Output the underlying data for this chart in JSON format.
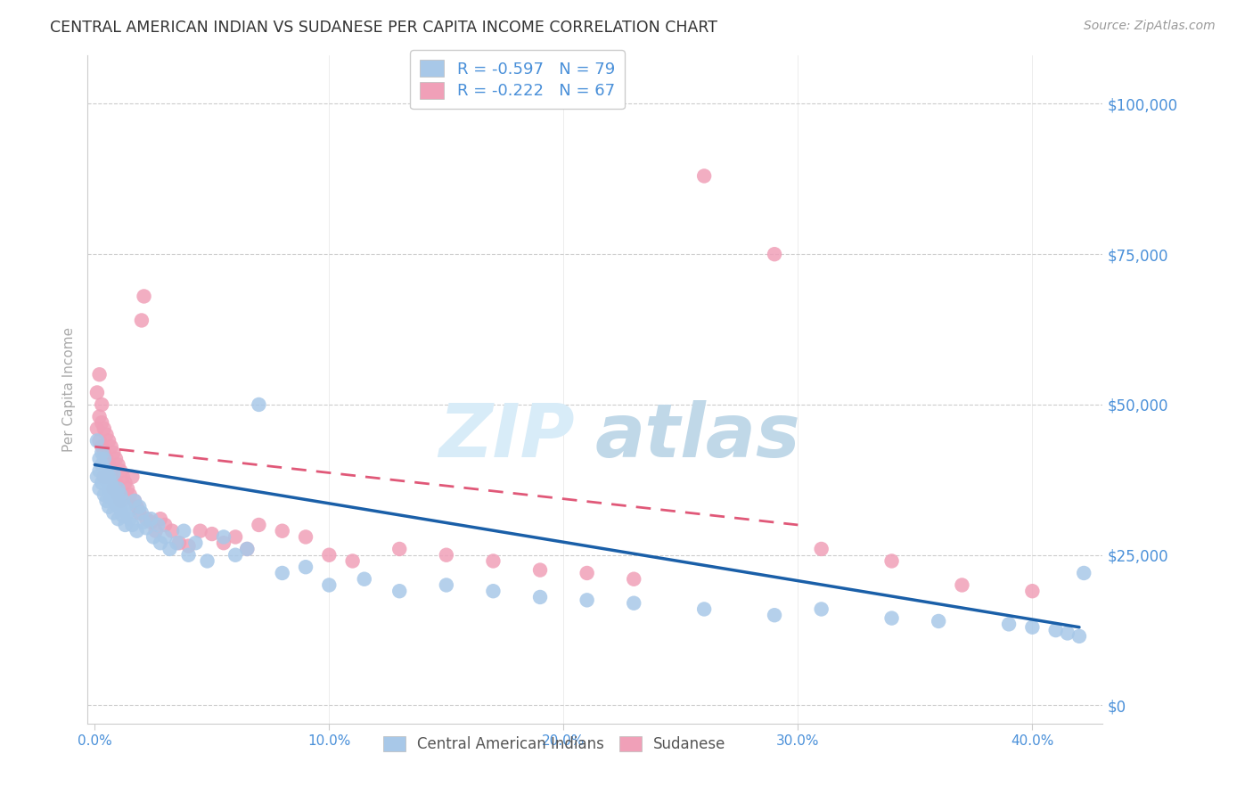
{
  "title": "CENTRAL AMERICAN INDIAN VS SUDANESE PER CAPITA INCOME CORRELATION CHART",
  "source": "Source: ZipAtlas.com",
  "ylabel": "Per Capita Income",
  "xlim": [
    -0.003,
    0.43
  ],
  "ylim": [
    -3000,
    108000
  ],
  "xticks": [
    0.0,
    0.1,
    0.2,
    0.3,
    0.4
  ],
  "xtick_labels": [
    "0.0%",
    "10.0%",
    "20.0%",
    "30.0%",
    "40.0%"
  ],
  "yticks": [
    0,
    25000,
    50000,
    75000,
    100000
  ],
  "ytick_labels": [
    "$0",
    "$25,000",
    "$50,000",
    "$75,000",
    "$100,000"
  ],
  "blue_color": "#a8c8e8",
  "pink_color": "#f0a0b8",
  "blue_line_color": "#1a5fa8",
  "pink_line_color": "#e05878",
  "tick_color": "#4a90d9",
  "grid_color": "#cccccc",
  "title_color": "#333333",
  "source_color": "#999999",
  "watermark_color": "#d8ecf8",
  "bg_color": "#ffffff",
  "blue_R": -0.597,
  "blue_N": 79,
  "pink_R": -0.222,
  "pink_N": 67,
  "blue_line_x0": 0.0,
  "blue_line_y0": 40000,
  "blue_line_x1": 0.42,
  "blue_line_y1": 13000,
  "pink_line_x0": 0.0,
  "pink_line_y0": 43000,
  "pink_line_x1": 0.3,
  "pink_line_y1": 30000,
  "blue_x": [
    0.001,
    0.001,
    0.002,
    0.002,
    0.002,
    0.003,
    0.003,
    0.003,
    0.004,
    0.004,
    0.004,
    0.005,
    0.005,
    0.005,
    0.006,
    0.006,
    0.006,
    0.007,
    0.007,
    0.007,
    0.008,
    0.008,
    0.008,
    0.009,
    0.009,
    0.01,
    0.01,
    0.01,
    0.011,
    0.011,
    0.012,
    0.012,
    0.013,
    0.013,
    0.014,
    0.015,
    0.016,
    0.017,
    0.018,
    0.019,
    0.02,
    0.021,
    0.022,
    0.024,
    0.025,
    0.027,
    0.028,
    0.03,
    0.032,
    0.035,
    0.038,
    0.04,
    0.043,
    0.048,
    0.055,
    0.06,
    0.065,
    0.07,
    0.08,
    0.09,
    0.1,
    0.115,
    0.13,
    0.15,
    0.17,
    0.19,
    0.21,
    0.23,
    0.26,
    0.29,
    0.31,
    0.34,
    0.36,
    0.39,
    0.4,
    0.41,
    0.415,
    0.42,
    0.422
  ],
  "blue_y": [
    44000,
    38000,
    41000,
    36000,
    39000,
    42000,
    37000,
    40000,
    38000,
    35000,
    41000,
    37500,
    34000,
    39000,
    36000,
    33000,
    38000,
    36500,
    34500,
    37000,
    35000,
    32000,
    38500,
    35500,
    33500,
    36000,
    34000,
    31000,
    35000,
    32500,
    34000,
    31500,
    33000,
    30000,
    32000,
    31000,
    30000,
    34000,
    29000,
    33000,
    32000,
    30500,
    29500,
    31000,
    28000,
    30000,
    27000,
    28000,
    26000,
    27000,
    29000,
    25000,
    27000,
    24000,
    28000,
    25000,
    26000,
    50000,
    22000,
    23000,
    20000,
    21000,
    19000,
    20000,
    19000,
    18000,
    17500,
    17000,
    16000,
    15000,
    16000,
    14500,
    14000,
    13500,
    13000,
    12500,
    12000,
    11500,
    22000
  ],
  "pink_x": [
    0.001,
    0.001,
    0.002,
    0.002,
    0.002,
    0.003,
    0.003,
    0.003,
    0.004,
    0.004,
    0.004,
    0.005,
    0.005,
    0.005,
    0.006,
    0.006,
    0.007,
    0.007,
    0.007,
    0.008,
    0.008,
    0.009,
    0.009,
    0.01,
    0.01,
    0.011,
    0.011,
    0.012,
    0.013,
    0.014,
    0.015,
    0.016,
    0.017,
    0.018,
    0.019,
    0.02,
    0.021,
    0.022,
    0.024,
    0.026,
    0.028,
    0.03,
    0.033,
    0.036,
    0.04,
    0.045,
    0.05,
    0.055,
    0.06,
    0.065,
    0.07,
    0.08,
    0.09,
    0.1,
    0.11,
    0.13,
    0.15,
    0.17,
    0.19,
    0.21,
    0.23,
    0.26,
    0.29,
    0.31,
    0.34,
    0.37,
    0.4
  ],
  "pink_y": [
    52000,
    46000,
    55000,
    48000,
    44000,
    47000,
    43000,
    50000,
    46000,
    42000,
    38000,
    45000,
    41000,
    38000,
    44000,
    40000,
    43000,
    39000,
    38000,
    42000,
    36000,
    41000,
    37000,
    40000,
    35000,
    39000,
    34000,
    38000,
    37000,
    36000,
    35000,
    38000,
    34000,
    33000,
    32000,
    64000,
    68000,
    31000,
    30500,
    29000,
    31000,
    30000,
    29000,
    27000,
    26500,
    29000,
    28500,
    27000,
    28000,
    26000,
    30000,
    29000,
    28000,
    25000,
    24000,
    26000,
    25000,
    24000,
    22500,
    22000,
    21000,
    88000,
    75000,
    26000,
    24000,
    20000,
    19000
  ]
}
